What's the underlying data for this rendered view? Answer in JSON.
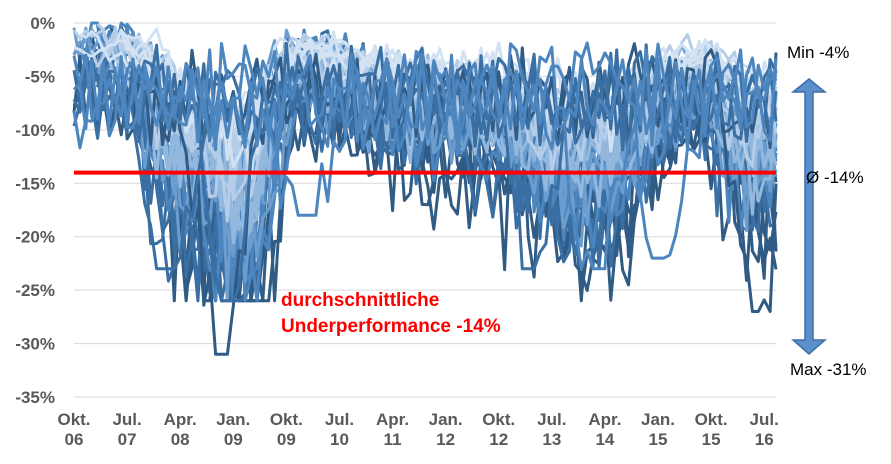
{
  "chart_data": {
    "type": "line",
    "title": "",
    "xlabel": "",
    "ylabel": "",
    "ylim": [
      -35,
      0
    ],
    "y_ticks": [
      "0%",
      "-5%",
      "-10%",
      "-15%",
      "-20%",
      "-25%",
      "-30%",
      "-35%"
    ],
    "x_ticks": [
      {
        "month": "Okt.",
        "year": "06"
      },
      {
        "month": "Jul.",
        "year": "07"
      },
      {
        "month": "Apr.",
        "year": "08"
      },
      {
        "month": "Jan.",
        "year": "09"
      },
      {
        "month": "Okt.",
        "year": "09"
      },
      {
        "month": "Jul.",
        "year": "10"
      },
      {
        "month": "Apr.",
        "year": "11"
      },
      {
        "month": "Jan.",
        "year": "12"
      },
      {
        "month": "Okt.",
        "year": "12"
      },
      {
        "month": "Jul.",
        "year": "13"
      },
      {
        "month": "Apr.",
        "year": "14"
      },
      {
        "month": "Jan.",
        "year": "15"
      },
      {
        "month": "Okt.",
        "year": "15"
      },
      {
        "month": "Jul.",
        "year": "16"
      }
    ],
    "x_range": [
      "2006-10",
      "2016-09"
    ],
    "grid": "horizontal",
    "average_line": {
      "value": -14,
      "color": "#ff0000"
    },
    "annotation_lines": [
      "durchschnittliche",
      "Underperformance -14%"
    ],
    "range_labels": {
      "min": "Min  -4%",
      "avg": "Ø  -14%",
      "max": "Max  -31%"
    },
    "series_colors": [
      "#2f5b85",
      "#3a6fa3",
      "#4d86bf",
      "#6c9dcf",
      "#93b8de",
      "#b5cde8",
      "#d3e2f3"
    ],
    "series": [
      {
        "min_value": -31,
        "min_date": "2008-11"
      },
      {
        "min_value": -27,
        "min_date": "2016-06"
      },
      {
        "min_value": -26,
        "min_date": "2008-12"
      },
      {
        "min_value": -23,
        "min_date": "2008-02"
      },
      {
        "min_value": -23,
        "min_date": "2013-04"
      },
      {
        "min_value": -23,
        "min_date": "2014-02"
      },
      {
        "min_value": -22,
        "min_date": "2015-02"
      },
      {
        "min_value": -18,
        "min_date": "2010-01"
      }
    ]
  },
  "colors": {
    "avg_line": "#ff0000",
    "arrow_fill": "#5b8fcb",
    "arrow_stroke": "#3d6fa8",
    "grid": "#d9d9d9",
    "axis_text": "#595959"
  }
}
